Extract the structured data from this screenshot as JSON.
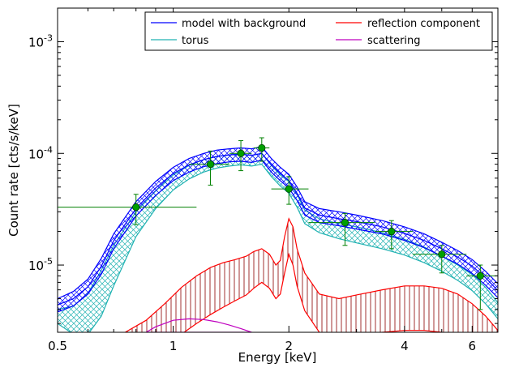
{
  "chart_data": {
    "type": "line",
    "xlabel": "Energy [keV]",
    "ylabel": "Count rate [cts/s/keV]",
    "xscale": "log",
    "yscale": "log",
    "xlim": [
      0.5,
      7.0
    ],
    "ylim": [
      2.5e-06,
      0.002
    ],
    "grid": false,
    "legend_position": "top-right",
    "x_ticks": [
      {
        "value": 0.5,
        "label": "0.5"
      },
      {
        "value": 1,
        "label": "1"
      },
      {
        "value": 2,
        "label": "2"
      },
      {
        "value": 4,
        "label": "4"
      },
      {
        "value": 6,
        "label": "6"
      }
    ],
    "y_ticks": [
      {
        "value": 1e-05,
        "base": "10",
        "exp": "-5"
      },
      {
        "value": 0.0001,
        "base": "10",
        "exp": "-4"
      },
      {
        "value": 0.001,
        "base": "10",
        "exp": "-3"
      }
    ],
    "legend": [
      {
        "name": "model with background",
        "color": "#0000ff"
      },
      {
        "name": "torus",
        "color": "#20b2b2"
      },
      {
        "name": "reflection component",
        "color": "#ff0000"
      },
      {
        "name": "scattering",
        "color": "#bf00bf"
      }
    ],
    "series": [
      {
        "name": "model with background",
        "color": "#0000ff",
        "x": [
          0.5,
          0.55,
          0.6,
          0.65,
          0.7,
          0.8,
          0.9,
          1.0,
          1.1,
          1.2,
          1.3,
          1.4,
          1.5,
          1.6,
          1.7,
          1.8,
          1.9,
          2.0,
          2.1,
          2.2,
          2.4,
          2.7,
          3.0,
          3.5,
          4.0,
          4.5,
          5.0,
          5.5,
          6.0,
          6.5,
          7.0
        ],
        "upper": [
          5e-06,
          5.8e-06,
          7.5e-06,
          1.15e-05,
          1.9e-05,
          3.7e-05,
          5.6e-05,
          7.5e-05,
          9e-05,
          0.0001,
          0.000107,
          0.00011,
          0.000112,
          0.00011,
          0.000115,
          9e-05,
          7.5e-05,
          6.5e-05,
          5e-05,
          3.7e-05,
          3.2e-05,
          3e-05,
          2.8e-05,
          2.5e-05,
          2.2e-05,
          1.9e-05,
          1.6e-05,
          1.35e-05,
          1.12e-05,
          8.8e-06,
          6.8e-06
        ],
        "center": [
          4.4e-06,
          5e-06,
          6.4e-06,
          9.8e-06,
          1.65e-05,
          3.2e-05,
          4.9e-05,
          6.6e-05,
          7.9e-05,
          8.8e-05,
          9.4e-05,
          9.7e-05,
          9.8e-05,
          9.6e-05,
          0.0001,
          7.9e-05,
          6.6e-05,
          5.7e-05,
          4.4e-05,
          3.25e-05,
          2.8e-05,
          2.6e-05,
          2.45e-05,
          2.2e-05,
          1.92e-05,
          1.66e-05,
          1.4e-05,
          1.18e-05,
          9.8e-06,
          7.7e-06,
          5.9e-06
        ],
        "lower": [
          3.8e-06,
          4.3e-06,
          5.5e-06,
          8.3e-06,
          1.4e-05,
          2.75e-05,
          4.2e-05,
          5.7e-05,
          6.8e-05,
          7.6e-05,
          8.1e-05,
          8.4e-05,
          8.5e-05,
          8.3e-05,
          8.7e-05,
          6.8e-05,
          5.7e-05,
          4.9e-05,
          3.8e-05,
          2.8e-05,
          2.4e-05,
          2.25e-05,
          2.1e-05,
          1.9e-05,
          1.66e-05,
          1.43e-05,
          1.2e-05,
          1.02e-05,
          8.4e-06,
          6.6e-06,
          5.1e-06
        ]
      },
      {
        "name": "torus",
        "color": "#20b2b2",
        "x": [
          0.5,
          0.55,
          0.6,
          0.65,
          0.7,
          0.8,
          0.9,
          1.0,
          1.1,
          1.2,
          1.3,
          1.4,
          1.5,
          1.6,
          1.7,
          1.8,
          1.9,
          2.0,
          2.1,
          2.2,
          2.4,
          2.7,
          3.0,
          3.5,
          4.0,
          4.5,
          5.0,
          5.5,
          6.0,
          6.5,
          7.0
        ],
        "upper": [
          4e-06,
          4.3e-06,
          5.6e-06,
          9e-06,
          1.5e-05,
          3e-05,
          4.6e-05,
          6.4e-05,
          7.8e-05,
          8.8e-05,
          9.4e-05,
          9.7e-05,
          9.9e-05,
          9.6e-05,
          0.0001,
          7.8e-05,
          6.4e-05,
          5.6e-05,
          4.3e-05,
          3.1e-05,
          2.6e-05,
          2.35e-05,
          2.2e-05,
          1.95e-05,
          1.7e-05,
          1.45e-05,
          1.2e-05,
          1e-05,
          8.2e-06,
          6.3e-06,
          4.6e-06
        ],
        "lower": [
          3e-06,
          2.4e-06,
          2.4e-06,
          3.5e-06,
          6.5e-06,
          1.8e-05,
          3.2e-05,
          4.7e-05,
          5.9e-05,
          6.8e-05,
          7.4e-05,
          7.7e-05,
          7.9e-05,
          7.7e-05,
          8e-05,
          6.2e-05,
          5.1e-05,
          4.4e-05,
          3.3e-05,
          2.35e-05,
          1.95e-05,
          1.72e-05,
          1.58e-05,
          1.4e-05,
          1.23e-05,
          1.05e-05,
          8.8e-06,
          7.3e-06,
          5.9e-06,
          4.5e-06,
          3.3e-06
        ]
      },
      {
        "name": "reflection component",
        "color": "#ff0000",
        "x": [
          0.75,
          0.85,
          0.95,
          1.05,
          1.15,
          1.25,
          1.35,
          1.45,
          1.55,
          1.62,
          1.7,
          1.78,
          1.85,
          1.9,
          1.95,
          2.0,
          2.05,
          2.1,
          2.2,
          2.4,
          2.7,
          3.0,
          3.5,
          4.0,
          4.5,
          5.0,
          5.5,
          6.0,
          6.5,
          7.0
        ],
        "upper": [
          2.5e-06,
          3.2e-06,
          4.5e-06,
          6.3e-06,
          8e-06,
          9.5e-06,
          1.05e-05,
          1.12e-05,
          1.2e-05,
          1.32e-05,
          1.4e-05,
          1.25e-05,
          1e-05,
          1.1e-05,
          1.8e-05,
          2.6e-05,
          2.2e-05,
          1.4e-05,
          8.5e-06,
          5.5e-06,
          5e-06,
          5.4e-06,
          6e-06,
          6.5e-06,
          6.5e-06,
          6.2e-06,
          5.5e-06,
          4.5e-06,
          3.5e-06,
          2.6e-06
        ],
        "lower": [
          1e-06,
          1.3e-06,
          1.8e-06,
          2.4e-06,
          3e-06,
          3.6e-06,
          4.2e-06,
          4.8e-06,
          5.4e-06,
          6.2e-06,
          7e-06,
          6.2e-06,
          5e-06,
          5.5e-06,
          8.5e-06,
          1.25e-05,
          1e-05,
          6.5e-06,
          3.9e-06,
          2.5e-06,
          2.2e-06,
          2.3e-06,
          2.5e-06,
          2.6e-06,
          2.6e-06,
          2.5e-06,
          2.2e-06,
          1.8e-06,
          1.4e-06,
          1e-06
        ]
      },
      {
        "name": "scattering",
        "color": "#bf00bf",
        "x": [
          0.85,
          0.9,
          0.95,
          1.0,
          1.1,
          1.2,
          1.3,
          1.4,
          1.5,
          1.6
        ],
        "upper": [
          2.5e-06,
          2.8e-06,
          3e-06,
          3.2e-06,
          3.3e-06,
          3.25e-06,
          3.1e-06,
          2.9e-06,
          2.7e-06,
          2.5e-06
        ],
        "lower": [
          2.5e-06,
          2.5e-06,
          2.5e-06,
          2.5e-06,
          2.5e-06,
          2.5e-06,
          2.5e-06,
          2.5e-06,
          2.5e-06,
          2.5e-06
        ]
      }
    ],
    "data_points": {
      "name": "data",
      "color": "#008000",
      "fill": "#00a000",
      "points": [
        {
          "x": 0.8,
          "y": 3.3e-05,
          "xlo": 0.5,
          "xhi": 1.15,
          "ylo": 2.3e-05,
          "yhi": 4.3e-05
        },
        {
          "x": 1.25,
          "y": 8e-05,
          "xlo": 1.1,
          "xhi": 1.4,
          "ylo": 5.2e-05,
          "yhi": 0.000105
        },
        {
          "x": 1.5,
          "y": 0.0001,
          "xlo": 1.4,
          "xhi": 1.6,
          "ylo": 7e-05,
          "yhi": 0.00013
        },
        {
          "x": 1.7,
          "y": 0.000112,
          "xlo": 1.62,
          "xhi": 1.78,
          "ylo": 8.5e-05,
          "yhi": 0.000138
        },
        {
          "x": 2.0,
          "y": 4.8e-05,
          "xlo": 1.8,
          "xhi": 2.25,
          "ylo": 3.5e-05,
          "yhi": 6.2e-05
        },
        {
          "x": 2.8,
          "y": 2.4e-05,
          "xlo": 2.25,
          "xhi": 3.35,
          "ylo": 1.5e-05,
          "yhi": 2.9e-05
        },
        {
          "x": 3.7,
          "y": 2e-05,
          "xlo": 3.35,
          "xhi": 4.2,
          "ylo": 1.4e-05,
          "yhi": 2.5e-05
        },
        {
          "x": 5.0,
          "y": 1.25e-05,
          "xlo": 4.2,
          "xhi": 5.8,
          "ylo": 8.5e-06,
          "yhi": 1.5e-05
        },
        {
          "x": 6.3,
          "y": 8e-06,
          "xlo": 5.8,
          "xhi": 7.0,
          "ylo": 4e-06,
          "yhi": 1e-05
        }
      ]
    }
  }
}
